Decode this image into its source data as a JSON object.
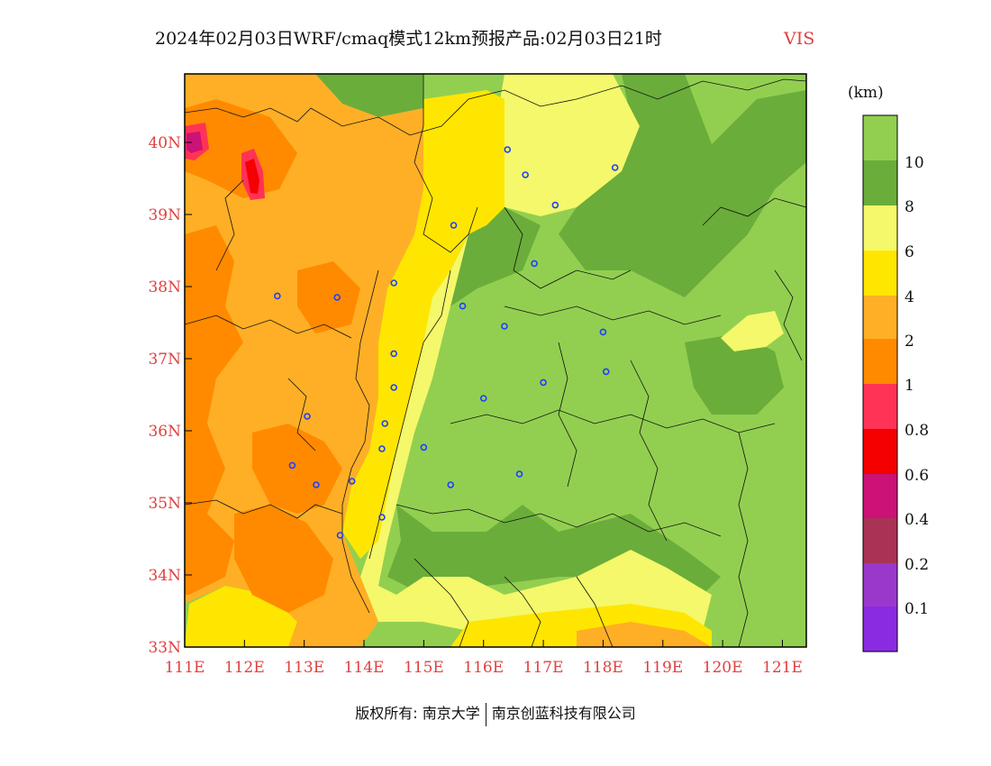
{
  "title": {
    "main": "2024年02月03日WRF/cmaq模式12km预报产品:02月03日21时",
    "variable": "VIS"
  },
  "map": {
    "lon_range": [
      111,
      121.4
    ],
    "lat_range": [
      33,
      40.95
    ],
    "x_ticks": [
      "111E",
      "112E",
      "113E",
      "114E",
      "115E",
      "116E",
      "117E",
      "118E",
      "119E",
      "120E",
      "121E"
    ],
    "y_ticks": [
      "33N",
      "34N",
      "35N",
      "36N",
      "37N",
      "38N",
      "39N",
      "40N"
    ]
  },
  "legend": {
    "unit": "(km)",
    "labels": [
      "10",
      "8",
      "6",
      "4",
      "2",
      "1",
      "0.8",
      "0.6",
      "0.4",
      "0.2",
      "0.1"
    ],
    "colors": {
      "gt10": "#92cf50",
      "8_10": "#6aad3a",
      "6_8": "#f4f86a",
      "4_6": "#ffe600",
      "2_4": "#ffaf25",
      "1_2": "#ff8a00",
      "0.8_1": "#ff3355",
      "0.6_0.8": "#f50000",
      "0.4_0.6": "#cc1177",
      "0.2_0.4": "#aa3355",
      "0.1_0.2": "#9a38cc",
      "lt0.1": "#8a2be2"
    }
  },
  "stations": [
    [
      116.4,
      39.9
    ],
    [
      116.7,
      39.55
    ],
    [
      117.2,
      39.13
    ],
    [
      118.2,
      39.65
    ],
    [
      115.5,
      38.85
    ],
    [
      114.5,
      38.05
    ],
    [
      112.55,
      37.87
    ],
    [
      113.55,
      37.85
    ],
    [
      116.85,
      38.32
    ],
    [
      115.65,
      37.73
    ],
    [
      116.35,
      37.45
    ],
    [
      118.0,
      37.37
    ],
    [
      118.05,
      36.82
    ],
    [
      117.0,
      36.67
    ],
    [
      116.0,
      36.45
    ],
    [
      114.5,
      37.07
    ],
    [
      114.5,
      36.6
    ],
    [
      114.35,
      36.1
    ],
    [
      113.05,
      36.2
    ],
    [
      114.3,
      35.75
    ],
    [
      115.0,
      35.77
    ],
    [
      112.8,
      35.52
    ],
    [
      113.2,
      35.25
    ],
    [
      113.8,
      35.3
    ],
    [
      115.45,
      35.25
    ],
    [
      116.6,
      35.4
    ],
    [
      114.3,
      34.8
    ],
    [
      113.6,
      34.55
    ]
  ],
  "footer": {
    "copyright_label": "版权所有:",
    "owner1": "南京大学",
    "owner2": "南京创蓝科技有限公司"
  }
}
